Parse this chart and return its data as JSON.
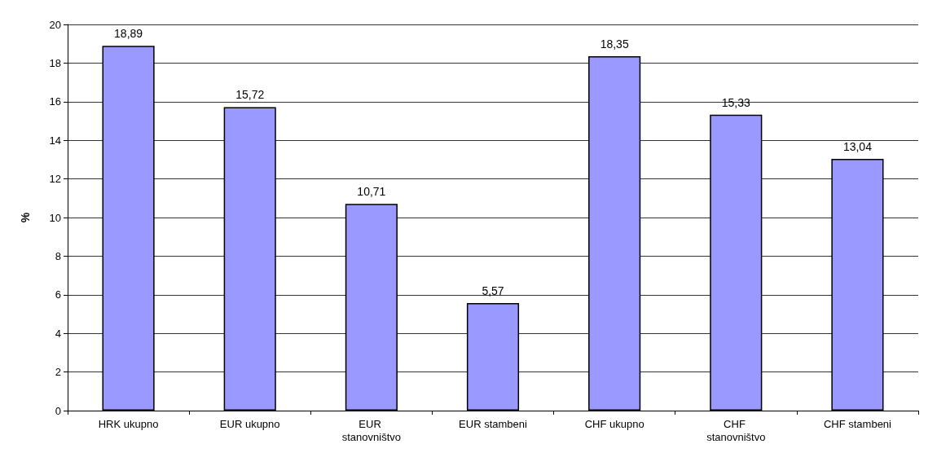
{
  "chart_data": {
    "type": "bar",
    "ylabel": "%",
    "categories": [
      "HRK ukupno",
      "EUR ukupno",
      "EUR stanovništvo",
      "EUR stambeni",
      "CHF ukupno",
      "CHF stanovništvo",
      "CHF stambeni"
    ],
    "values": [
      18.89,
      15.72,
      10.71,
      5.57,
      18.35,
      15.33,
      13.04
    ],
    "value_labels": [
      "18,89",
      "15,72",
      "10,71",
      "5,57",
      "18,35",
      "15,33",
      "13,04"
    ],
    "color": "#9999ff",
    "ylim": [
      0,
      20
    ],
    "yticks": [
      0,
      2,
      4,
      6,
      8,
      10,
      12,
      14,
      16,
      18,
      20
    ],
    "grid": "y"
  }
}
